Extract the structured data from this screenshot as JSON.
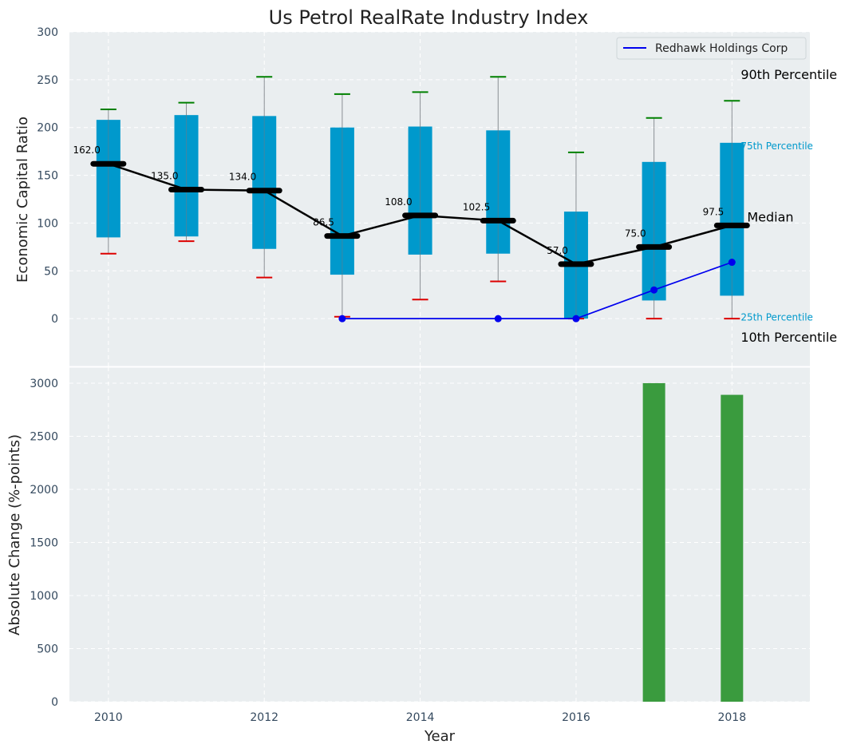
{
  "chart_data": {
    "title": "Us Petrol RealRate Industry Index",
    "xlabel": "Year",
    "top": {
      "type": "box",
      "ylabel": "Economic Capital Ratio",
      "xlim": [
        2009.5,
        2019.0
      ],
      "ylim": [
        -50,
        300
      ],
      "yticks": [
        0,
        50,
        100,
        150,
        200,
        250,
        300
      ],
      "ytick_labels": [
        "0",
        "50",
        "100",
        "150",
        "200",
        "250",
        "300"
      ],
      "grid": true,
      "years": [
        2010,
        2011,
        2012,
        2013,
        2014,
        2015,
        2016,
        2017,
        2018
      ],
      "p10": [
        68,
        81,
        43,
        2,
        20,
        39,
        0,
        0,
        0
      ],
      "p25": [
        85,
        86,
        73,
        46,
        67,
        68,
        0,
        19,
        24
      ],
      "median": [
        162.0,
        135.0,
        134.0,
        86.5,
        108.0,
        102.5,
        57.0,
        75.0,
        97.5
      ],
      "median_labels": [
        "162.0",
        "135.0",
        "134.0",
        "86.5",
        "108.0",
        "102.5",
        "57.0",
        "75.0",
        "97.5"
      ],
      "p75": [
        208,
        213,
        212,
        200,
        201,
        197,
        112,
        164,
        184
      ],
      "p90": [
        219,
        226,
        253,
        235,
        237,
        253,
        174,
        210,
        228
      ],
      "company": {
        "name": "Redhawk Holdings Corp",
        "years": [
          2013,
          2015,
          2016,
          2017,
          2018
        ],
        "values": [
          0,
          0,
          0,
          30,
          59
        ],
        "color": "#0000ee"
      },
      "percentile_labels": {
        "p90": "90th Percentile",
        "p75": "75th Percentile",
        "median": "Median",
        "p25": "25th Percentile",
        "p10": "10th Percentile"
      },
      "legend_position": "top-right"
    },
    "bottom": {
      "type": "bar",
      "ylabel": "Absolute Change (%-points)",
      "ylim": [
        0,
        3150
      ],
      "yticks": [
        0,
        500,
        1000,
        1500,
        2000,
        2500,
        3000
      ],
      "ytick_labels": [
        "0",
        "500",
        "1000",
        "1500",
        "2000",
        "2500",
        "3000"
      ],
      "xticks": [
        2010,
        2012,
        2014,
        2016,
        2018
      ],
      "xtick_labels": [
        "2010",
        "2012",
        "2014",
        "2016",
        "2018"
      ],
      "bars": [
        {
          "year": 2017,
          "value": 3000
        },
        {
          "year": 2018,
          "value": 2890
        }
      ],
      "grid": true
    },
    "colors": {
      "plot_bg": "#eaeef0",
      "box": "#0099cc",
      "whisker": "#8a8f94",
      "p90_cap": "#008000",
      "p10_cap": "#dd0000",
      "median": "#000000",
      "bar": "#3a9b3e",
      "grid": "#ffffff",
      "tick_text": "#34495e"
    }
  }
}
